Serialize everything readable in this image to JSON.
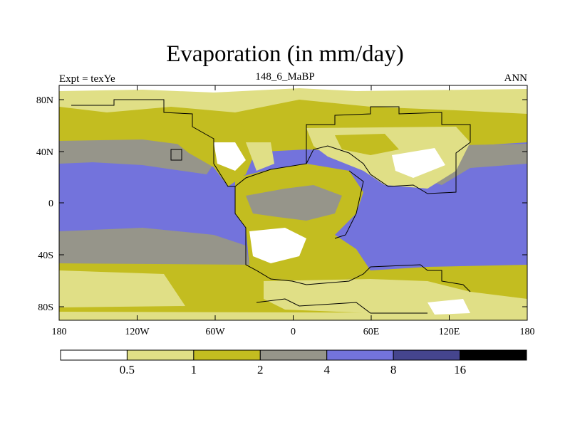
{
  "header": {
    "title": "Evaporation (in mm/day)",
    "left_label": "Expt = texYe",
    "center_label": "148_6_MaBP",
    "right_label": "ANN"
  },
  "axes": {
    "lat_ticks": [
      "80N",
      "40N",
      "0",
      "40S",
      "80S"
    ],
    "lon_ticks": [
      "180",
      "120W",
      "60W",
      "0",
      "60E",
      "120E",
      "180"
    ]
  },
  "colorbar": {
    "colors": [
      "#ffffff",
      "#e0df86",
      "#c3bd20",
      "#96958a",
      "#7373dc",
      "#45458e",
      "#000000"
    ],
    "labels": [
      "0.5",
      "1",
      "2",
      "4",
      "8",
      "16"
    ]
  }
}
